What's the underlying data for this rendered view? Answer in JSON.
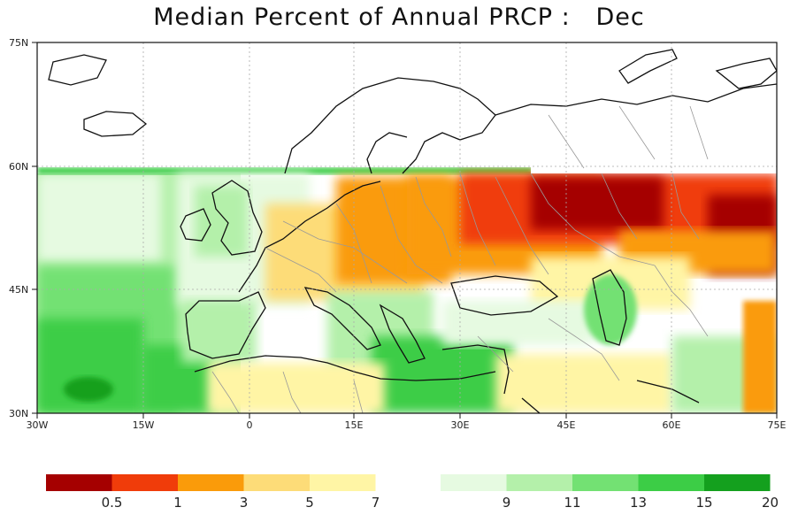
{
  "title": "Median Percent of Annual PRCP :   Dec",
  "map": {
    "lat_labels": [
      "75N",
      "60N",
      "45N",
      "30N"
    ],
    "lon_labels": [
      "30W",
      "15W",
      "0",
      "15E",
      "30E",
      "45E",
      "60E",
      "75E"
    ]
  },
  "legend": {
    "boxes": [
      {
        "color": "#a50000"
      },
      {
        "color": "#f03c0a"
      },
      {
        "color": "#fa9b0a"
      },
      {
        "color": "#fddc78"
      },
      {
        "color": "#fff5a5"
      },
      {
        "color": "#e6fae1"
      },
      {
        "color": "#b4f0aa"
      },
      {
        "color": "#73e173"
      },
      {
        "color": "#3ccd46"
      },
      {
        "color": "#14a01e"
      }
    ],
    "labels": [
      "0.5",
      "1",
      "3",
      "5",
      "7",
      "9",
      "11",
      "13",
      "15",
      "20"
    ]
  },
  "colors": {
    "land_outline": "#111111",
    "borders": "#999999",
    "gridline": "#aaaaaa",
    "no_data": "#ffffff"
  }
}
